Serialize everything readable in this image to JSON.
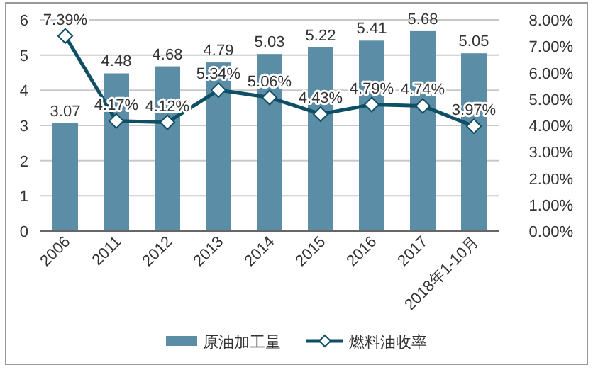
{
  "chart_data": {
    "type": "bar",
    "categories": [
      "2006",
      "2011",
      "2012",
      "2013",
      "2014",
      "2015",
      "2016",
      "2017",
      "2018年1-10月"
    ],
    "series": [
      {
        "name": "原油加工量",
        "color": "#5b8ea6",
        "values": [
          3.07,
          4.48,
          4.68,
          4.79,
          5.03,
          5.22,
          5.41,
          5.68,
          5.05
        ],
        "value_labels": [
          "3.07",
          "4.48",
          "4.68",
          "4.79",
          "5.03",
          "5.22",
          "5.41",
          "5.68",
          "5.05"
        ]
      },
      {
        "name": "燃料油收率",
        "type": "line",
        "axis": "y2",
        "color": "#0e4f66",
        "marker": "diamond",
        "values": [
          7.39,
          4.17,
          4.12,
          5.34,
          5.06,
          4.43,
          4.79,
          4.74,
          3.97
        ],
        "value_labels": [
          "7.39%",
          "4.17%",
          "4.12%",
          "5.34%",
          "5.06%",
          "4.43%",
          "4.79%",
          "4.74%",
          "3.97%"
        ]
      }
    ],
    "ylim": [
      0,
      6
    ],
    "yticks": [
      0,
      1,
      2,
      3,
      4,
      5,
      6
    ],
    "y2lim": [
      0,
      8
    ],
    "y2ticks": [
      {
        "value": 0,
        "label": "0.00%"
      },
      {
        "value": 1,
        "label": "1.00%"
      },
      {
        "value": 2,
        "label": "2.00%"
      },
      {
        "value": 3,
        "label": "3.00%"
      },
      {
        "value": 4,
        "label": "4.00%"
      },
      {
        "value": 5,
        "label": "5.00%"
      },
      {
        "value": 6,
        "label": "6.00%"
      },
      {
        "value": 7,
        "label": "7.00%"
      },
      {
        "value": 8,
        "label": "8.00%"
      }
    ],
    "grid": "y",
    "legend": "bottom"
  }
}
